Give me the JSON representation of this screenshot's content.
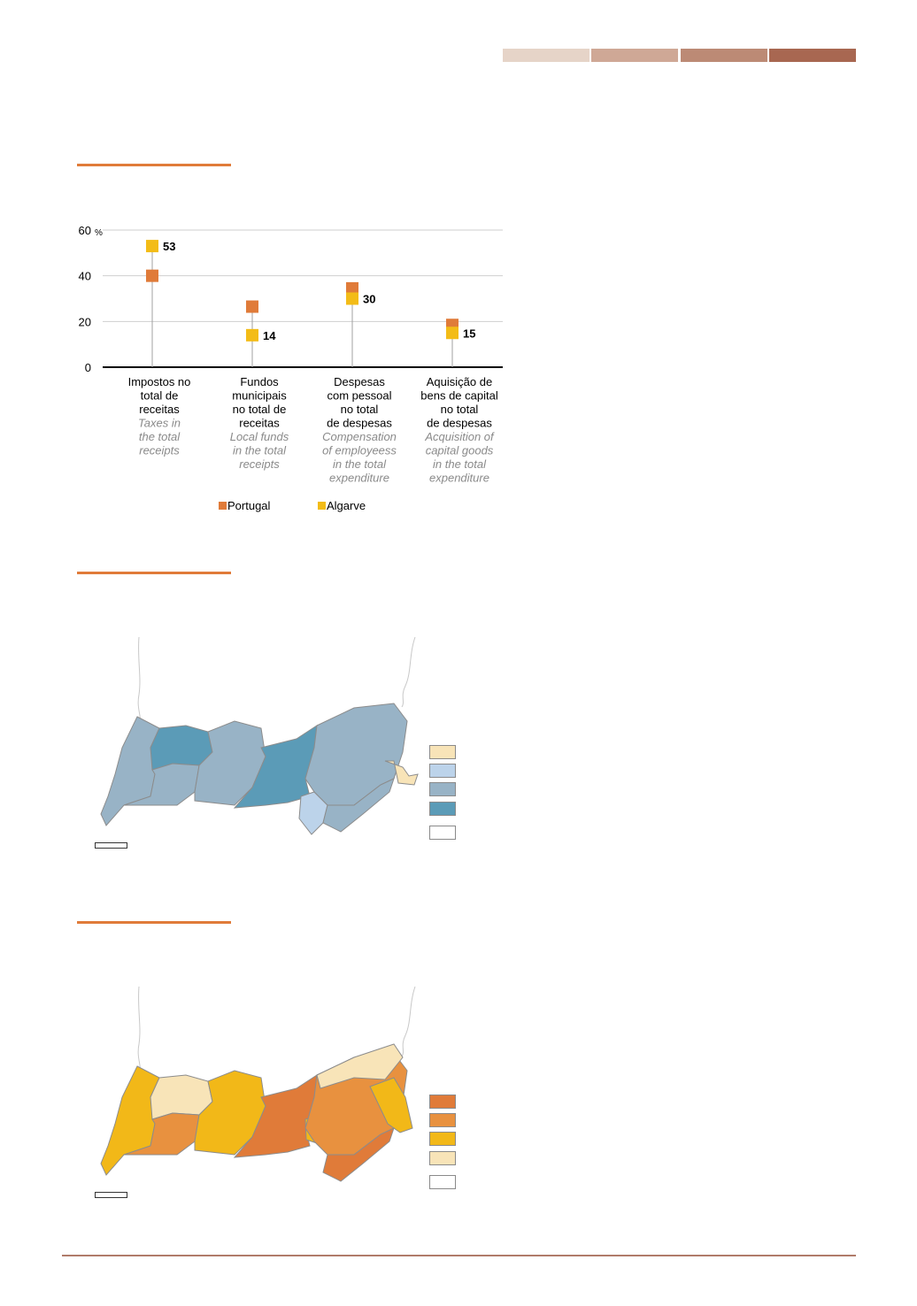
{
  "header_bands": [
    {
      "color": "#e6d4c8"
    },
    {
      "color": "#cfa896"
    },
    {
      "color": "#bc8a75"
    },
    {
      "color": "#a86751"
    }
  ],
  "accent_color": "#e07b39",
  "chart_data": {
    "type": "scatter",
    "unit": "%",
    "ylim": [
      0,
      60
    ],
    "yticks": [
      0,
      20,
      40,
      60
    ],
    "ytick_labels": [
      "0",
      "20",
      "40",
      "60"
    ],
    "categories": [
      {
        "pt": [
          "Impostos no",
          "total de",
          "receitas"
        ],
        "en": [
          "Taxes in",
          "the total",
          "receipts"
        ]
      },
      {
        "pt": [
          "Fundos",
          "municipais",
          "no total de",
          "receitas"
        ],
        "en": [
          "Local funds",
          "in the total",
          "receipts"
        ]
      },
      {
        "pt": [
          "Despesas",
          "com pessoal",
          "no total",
          "de despesas"
        ],
        "en": [
          "Compensation",
          "of employeess",
          "in the total",
          "expenditure"
        ]
      },
      {
        "pt": [
          "Aquisição de",
          "bens de capital",
          "no total",
          "de despesas"
        ],
        "en": [
          "Acquisition of",
          "capital goods",
          "in the total",
          "expenditure"
        ]
      }
    ],
    "series": [
      {
        "name": "Portugal",
        "color": "#e07b39",
        "values": [
          40,
          26.5,
          34.5,
          18.5
        ]
      },
      {
        "name": "Algarve",
        "color": "#f3bc17",
        "values": [
          53,
          14,
          30,
          15
        ]
      }
    ],
    "data_labels": [
      "53",
      "14",
      "30",
      "15"
    ]
  },
  "map1": {
    "legend_colors": [
      "#f8e4b8",
      "#bcd3ea",
      "#98b3c6",
      "#5b9bb7",
      "#ffffff"
    ]
  },
  "map2": {
    "legend_colors": [
      "#e07b39",
      "#e8913f",
      "#f2b818",
      "#f8e4b8",
      "#ffffff"
    ]
  }
}
